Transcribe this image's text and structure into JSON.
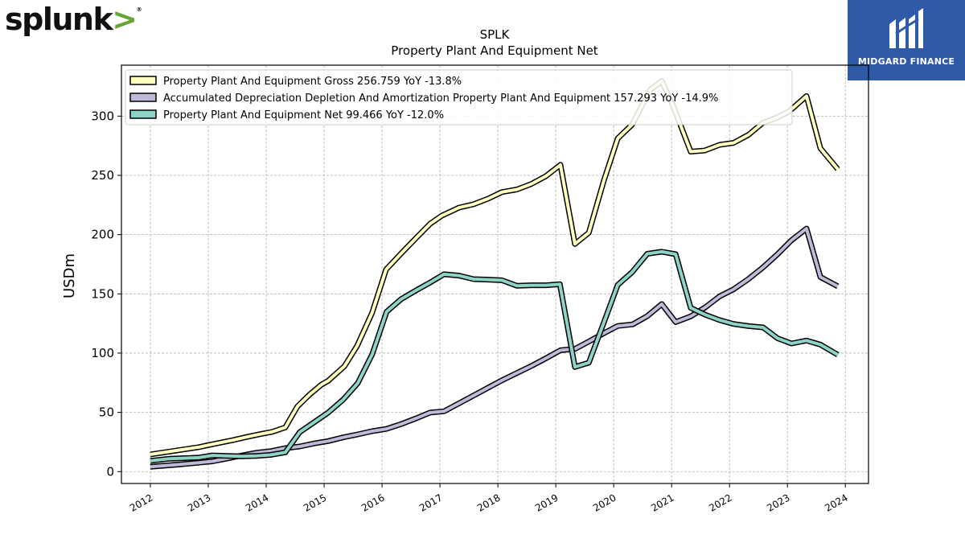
{
  "logos": {
    "left": {
      "name": "splunk",
      "mark": ">"
    },
    "right": {
      "name": "MIDGARD FINANCE"
    }
  },
  "colors": {
    "gross": "#ffffbf",
    "depreciation": "#bebada",
    "net": "#8dd3c7",
    "outline": "#000000",
    "grid": "#b0b0b0",
    "midgard_bg": "#2e5aa8"
  },
  "chart_data": {
    "type": "line",
    "title": "SPLK",
    "subtitle": "Property Plant And Equipment Net",
    "xlabel": "",
    "ylabel": "USDm",
    "xlim": [
      2011.5,
      2024.4
    ],
    "ylim": [
      -10,
      343
    ],
    "x_ticks": [
      "2012",
      "2013",
      "2014",
      "2015",
      "2016",
      "2017",
      "2018",
      "2019",
      "2020",
      "2021",
      "2022",
      "2023",
      "2024"
    ],
    "y_ticks": [
      0,
      50,
      100,
      150,
      200,
      250,
      300
    ],
    "grid": true,
    "legend_position": "top-left",
    "series": [
      {
        "name": "Property Plant And Equipment Gross",
        "legend_label": "Property Plant And Equipment Gross  256.759 YoY -13.8%",
        "color_key": "gross",
        "points": [
          [
            2012.0,
            14.5
          ],
          [
            2012.83,
            20.6
          ],
          [
            2013.0,
            22.4
          ],
          [
            2013.17,
            24.1
          ],
          [
            2013.42,
            26.5
          ],
          [
            2013.67,
            29.3
          ],
          [
            2013.92,
            31.9
          ],
          [
            2014.1,
            33.5
          ],
          [
            2014.33,
            37.3
          ],
          [
            2014.54,
            55.0
          ],
          [
            2014.75,
            65.1
          ],
          [
            2014.95,
            73.3
          ],
          [
            2015.07,
            76.6
          ],
          [
            2015.35,
            88.9
          ],
          [
            2015.57,
            106.1
          ],
          [
            2015.83,
            134.1
          ],
          [
            2016.07,
            170.6
          ],
          [
            2016.33,
            184.1
          ],
          [
            2016.58,
            196.7
          ],
          [
            2016.83,
            209.1
          ],
          [
            2017.03,
            215.9
          ],
          [
            2017.33,
            222.8
          ],
          [
            2017.58,
            225.6
          ],
          [
            2017.83,
            230.3
          ],
          [
            2018.07,
            235.9
          ],
          [
            2018.33,
            238.1
          ],
          [
            2018.58,
            242.8
          ],
          [
            2018.83,
            249.4
          ],
          [
            2019.08,
            258.9
          ],
          [
            2019.33,
            192.1
          ],
          [
            2019.57,
            201.6
          ],
          [
            2019.83,
            245.6
          ],
          [
            2020.07,
            281.2
          ],
          [
            2020.32,
            293.0
          ],
          [
            2020.63,
            322.1
          ],
          [
            2020.83,
            329.6
          ],
          [
            2021.03,
            308.2
          ],
          [
            2021.33,
            270.0
          ],
          [
            2021.57,
            271.0
          ],
          [
            2021.83,
            275.8
          ],
          [
            2022.07,
            277.4
          ],
          [
            2022.33,
            284.3
          ],
          [
            2022.57,
            294.1
          ],
          [
            2022.82,
            298.8
          ],
          [
            2023.03,
            304.0
          ],
          [
            2023.33,
            316.9
          ],
          [
            2023.57,
            272.9
          ],
          [
            2023.87,
            255.2
          ]
        ]
      },
      {
        "name": "Accumulated Depreciation Depletion And Amortization Property Plant And Equipment",
        "legend_label": "Accumulated Depreciation Depletion And Amortization Property Plant And Equipment  157.293 YoY -14.9%",
        "color_key": "depreciation",
        "points": [
          [
            2012.0,
            4.1
          ],
          [
            2012.5,
            6.0
          ],
          [
            2012.83,
            7.5
          ],
          [
            2013.07,
            8.7
          ],
          [
            2013.33,
            11.1
          ],
          [
            2013.58,
            13.6
          ],
          [
            2013.83,
            15.9
          ],
          [
            2014.07,
            17.2
          ],
          [
            2014.33,
            19.8
          ],
          [
            2014.58,
            21.2
          ],
          [
            2014.83,
            23.8
          ],
          [
            2015.07,
            25.8
          ],
          [
            2015.33,
            28.9
          ],
          [
            2015.58,
            31.4
          ],
          [
            2015.83,
            34.1
          ],
          [
            2016.08,
            36.1
          ],
          [
            2016.33,
            40.1
          ],
          [
            2016.58,
            44.8
          ],
          [
            2016.83,
            49.8
          ],
          [
            2017.07,
            50.9
          ],
          [
            2017.33,
            57.7
          ],
          [
            2017.58,
            64.2
          ],
          [
            2017.83,
            70.8
          ],
          [
            2018.07,
            77.0
          ],
          [
            2018.33,
            83.3
          ],
          [
            2018.58,
            89.2
          ],
          [
            2018.83,
            95.6
          ],
          [
            2019.08,
            102.4
          ],
          [
            2019.33,
            103.5
          ],
          [
            2019.58,
            110.0
          ],
          [
            2019.83,
            116.8
          ],
          [
            2020.07,
            122.9
          ],
          [
            2020.33,
            124.3
          ],
          [
            2020.58,
            131.3
          ],
          [
            2020.83,
            141.4
          ],
          [
            2021.07,
            126.2
          ],
          [
            2021.33,
            131.0
          ],
          [
            2021.58,
            138.6
          ],
          [
            2021.83,
            147.9
          ],
          [
            2022.07,
            153.9
          ],
          [
            2022.33,
            162.6
          ],
          [
            2022.58,
            172.4
          ],
          [
            2022.83,
            183.5
          ],
          [
            2023.07,
            195.2
          ],
          [
            2023.33,
            205.1
          ],
          [
            2023.57,
            164.2
          ],
          [
            2023.87,
            156.4
          ]
        ]
      },
      {
        "name": "Property Plant And Equipment Net",
        "legend_label": "Property Plant And Equipment Net  99.466 YoY -12.0%",
        "color_key": "net",
        "points": [
          [
            2012.0,
            9.1
          ],
          [
            2012.33,
            10.9
          ],
          [
            2012.83,
            11.8
          ],
          [
            2013.07,
            13.7
          ],
          [
            2013.33,
            13.2
          ],
          [
            2013.58,
            12.9
          ],
          [
            2013.83,
            13.2
          ],
          [
            2014.07,
            14.1
          ],
          [
            2014.33,
            16.3
          ],
          [
            2014.58,
            33.4
          ],
          [
            2014.83,
            41.7
          ],
          [
            2015.07,
            49.8
          ],
          [
            2015.33,
            60.8
          ],
          [
            2015.58,
            74.6
          ],
          [
            2015.83,
            98.9
          ],
          [
            2016.08,
            134.9
          ],
          [
            2016.33,
            145.5
          ],
          [
            2016.58,
            152.7
          ],
          [
            2016.83,
            159.6
          ],
          [
            2017.07,
            166.6
          ],
          [
            2017.33,
            165.4
          ],
          [
            2017.58,
            162.4
          ],
          [
            2017.83,
            162.0
          ],
          [
            2018.07,
            161.5
          ],
          [
            2018.33,
            156.8
          ],
          [
            2018.58,
            157.3
          ],
          [
            2018.83,
            157.3
          ],
          [
            2019.07,
            158.2
          ],
          [
            2019.33,
            88.3
          ],
          [
            2019.57,
            91.9
          ],
          [
            2019.83,
            125.8
          ],
          [
            2020.07,
            157.6
          ],
          [
            2020.32,
            168.4
          ],
          [
            2020.58,
            183.8
          ],
          [
            2020.83,
            185.6
          ],
          [
            2021.07,
            183.5
          ],
          [
            2021.33,
            138.2
          ],
          [
            2021.58,
            132.4
          ],
          [
            2021.83,
            127.9
          ],
          [
            2022.07,
            124.6
          ],
          [
            2022.33,
            122.8
          ],
          [
            2022.58,
            121.7
          ],
          [
            2022.83,
            112.5
          ],
          [
            2023.07,
            108.1
          ],
          [
            2023.33,
            110.6
          ],
          [
            2023.57,
            107.2
          ],
          [
            2023.87,
            98.6
          ]
        ]
      }
    ]
  }
}
